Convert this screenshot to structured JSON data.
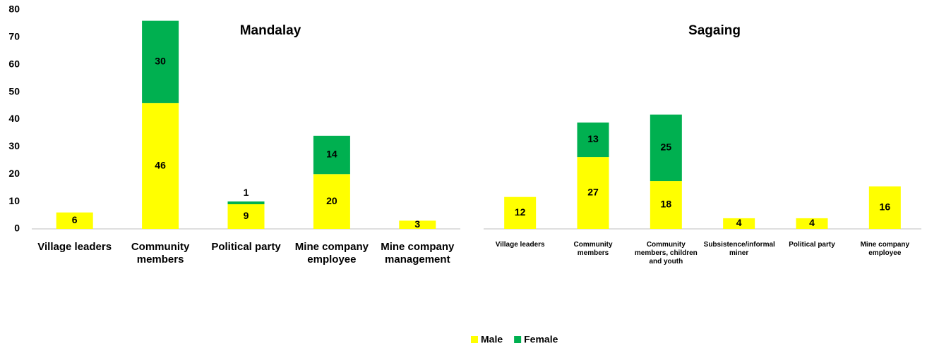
{
  "chart_data": [
    {
      "type": "stacked_bar",
      "title": "Mandalay",
      "categories": [
        "Village leaders",
        "Community members",
        "Political party",
        "Mine company employee",
        "Mine company management"
      ],
      "series": [
        {
          "name": "Male",
          "color": "#ffff00",
          "values": [
            6,
            46,
            9,
            20,
            3
          ]
        },
        {
          "name": "Female",
          "color": "#00b050",
          "values": [
            null,
            30,
            1,
            14,
            null
          ]
        }
      ],
      "ylim": [
        0,
        80
      ],
      "yticks": [
        0,
        10,
        20,
        30,
        40,
        50,
        60,
        70,
        80
      ],
      "legend": "bottom"
    },
    {
      "type": "stacked_bar",
      "title": "Sagaing",
      "categories": [
        "Village leaders",
        "Community members",
        "Community members, children and youth",
        "Subsistence/informal miner",
        "Political party",
        "Mine company employee"
      ],
      "series": [
        {
          "name": "Male",
          "color": "#ffff00",
          "values": [
            12,
            27,
            18,
            4,
            4,
            16
          ]
        },
        {
          "name": "Female",
          "color": "#00b050",
          "values": [
            null,
            13,
            25,
            null,
            null,
            null
          ]
        }
      ],
      "ylim": [
        0,
        80
      ]
    }
  ]
}
